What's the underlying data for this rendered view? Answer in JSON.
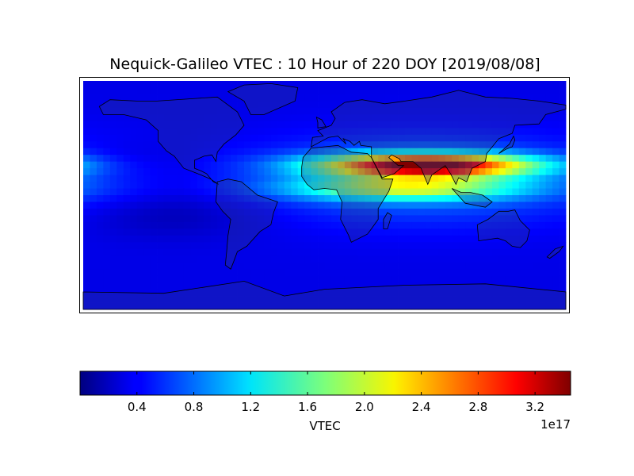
{
  "chart_data": {
    "type": "heatmap",
    "title": "Nequick-Galileo VTEC : 10 Hour of 220 DOY [2019/08/08]",
    "colorbar": {
      "label": "VTEC",
      "exponent": "1e17",
      "range": [
        0.0,
        3.45
      ],
      "ticks": [
        0.4,
        0.8,
        1.2,
        1.6,
        2.0,
        2.4,
        2.8,
        3.2
      ],
      "tick_labels": [
        "0.4",
        "0.8",
        "1.2",
        "1.6",
        "2.0",
        "2.4",
        "2.8",
        "3.2"
      ],
      "colormap": "jet",
      "orientation": "horizontal"
    },
    "map": {
      "projection": "cylindrical",
      "lon_range": [
        -180,
        180
      ],
      "lat_range": [
        -85,
        85
      ],
      "background_level": 0.35,
      "peak": {
        "lon": 80,
        "lat": 23,
        "value": 3.4
      },
      "equatorial_anomaly_crests": [
        {
          "lat": 22,
          "lon_center": 75,
          "value": 3.2
        },
        {
          "lat": 5,
          "lon_center": 60,
          "value": 2.0
        }
      ]
    },
    "grid": false
  }
}
